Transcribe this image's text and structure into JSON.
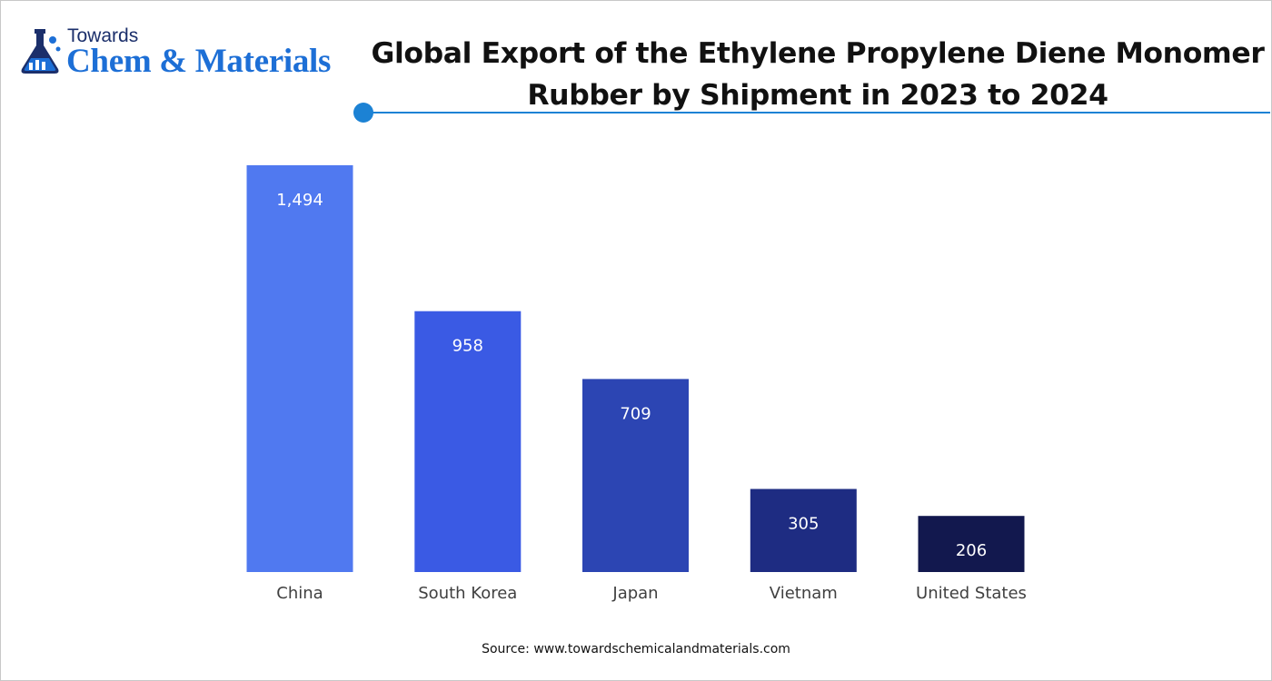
{
  "logo": {
    "line1": "Towards",
    "line2": "Chem & Materials",
    "icon": "flask-chart-icon",
    "colors": {
      "dark": "#1b2f6b",
      "accent": "#1d6fd6"
    }
  },
  "header": {
    "title_line1": "Global Export of the Ethylene Propylene Diene Monomer",
    "title_line2": "Rubber by Shipment in 2023 to 2024",
    "rule_color": "#1c82d4"
  },
  "chart_data": {
    "type": "bar",
    "title": "Global Export of the Ethylene Propylene Diene Monomer Rubber by Shipment in 2023 to 2024",
    "categories": [
      "China",
      "South Korea",
      "Japan",
      "Vietnam",
      "United States"
    ],
    "values": [
      1494,
      958,
      709,
      305,
      206
    ],
    "value_labels": [
      "1,494",
      "958",
      "709",
      "305",
      "206"
    ],
    "bar_colors": [
      "#5079f0",
      "#3a5ae4",
      "#2c45b3",
      "#1e2c82",
      "#12184e"
    ],
    "xlabel": "",
    "ylabel": "",
    "ylim": [
      0,
      1494
    ],
    "grid": false,
    "legend": "none"
  },
  "footer": {
    "source": "Source: www.towardschemicalandmaterials.com"
  }
}
